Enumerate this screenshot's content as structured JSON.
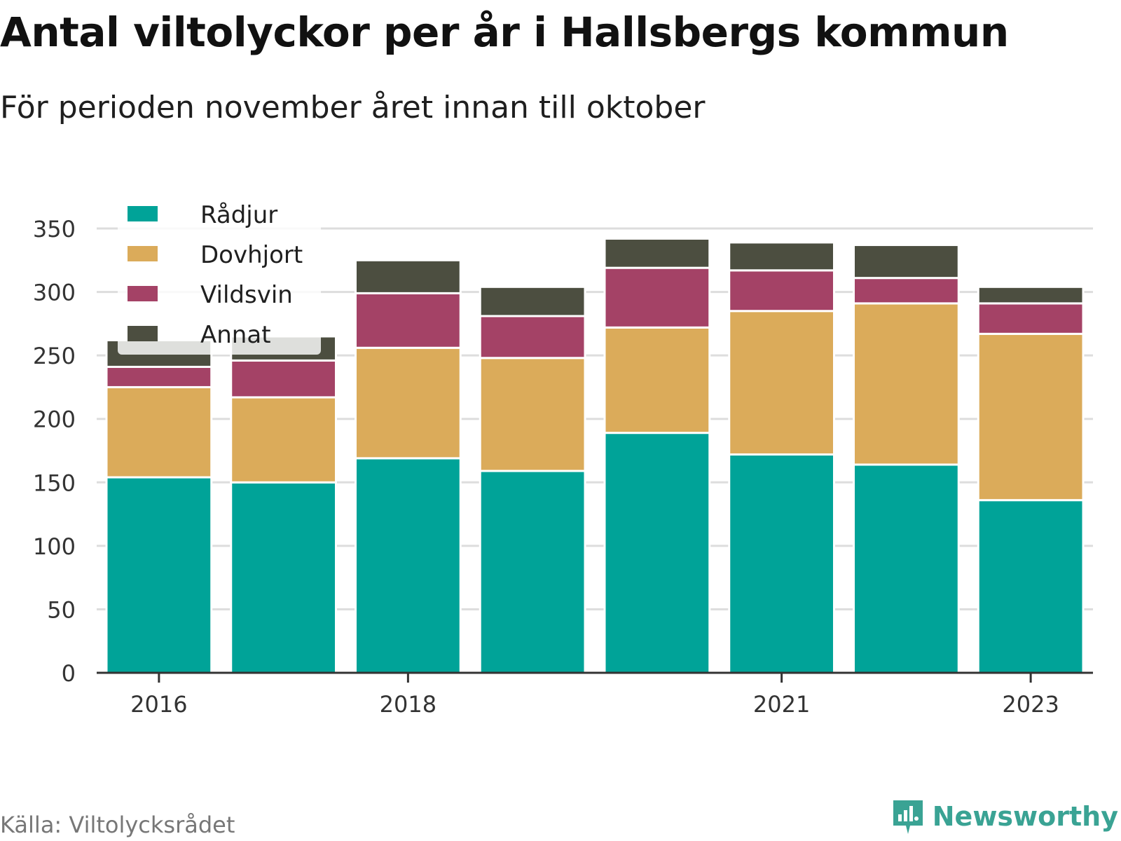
{
  "title": "Antal viltolyckor per år i Hallsbergs kommun",
  "subtitle": "För perioden november året innan till oktober",
  "source": "Källa: Viltolycksrådet",
  "brand": "Newsworthy",
  "colors": {
    "Rådjur": "#00a398",
    "Dovhjort": "#dbab5a",
    "Vildsvin": "#a44266",
    "Annat": "#4c4e40",
    "grid": "#dddddd",
    "axis": "#333333",
    "brand": "#3aa394"
  },
  "chart_data": {
    "type": "bar",
    "stacked": true,
    "categories": [
      "2016",
      "2017",
      "2018",
      "2019",
      "2020",
      "2021",
      "2022",
      "2023"
    ],
    "x_tick_labels": [
      "2016",
      "",
      "2018",
      "",
      "",
      "2021",
      "",
      "2023"
    ],
    "series": [
      {
        "name": "Rådjur",
        "values": [
          154,
          150,
          169,
          159,
          189,
          172,
          164,
          136
        ]
      },
      {
        "name": "Dovhjort",
        "values": [
          71,
          67,
          87,
          89,
          83,
          113,
          127,
          131
        ]
      },
      {
        "name": "Vildsvin",
        "values": [
          16,
          29,
          43,
          33,
          47,
          32,
          20,
          24
        ]
      },
      {
        "name": "Annat",
        "values": [
          21,
          19,
          26,
          23,
          23,
          22,
          26,
          13
        ]
      }
    ],
    "ylim": [
      0,
      350
    ],
    "y_ticks": [
      0,
      50,
      100,
      150,
      200,
      250,
      300,
      350
    ],
    "xlabel": "",
    "ylabel": "",
    "grid": true,
    "legend": "top-left"
  }
}
